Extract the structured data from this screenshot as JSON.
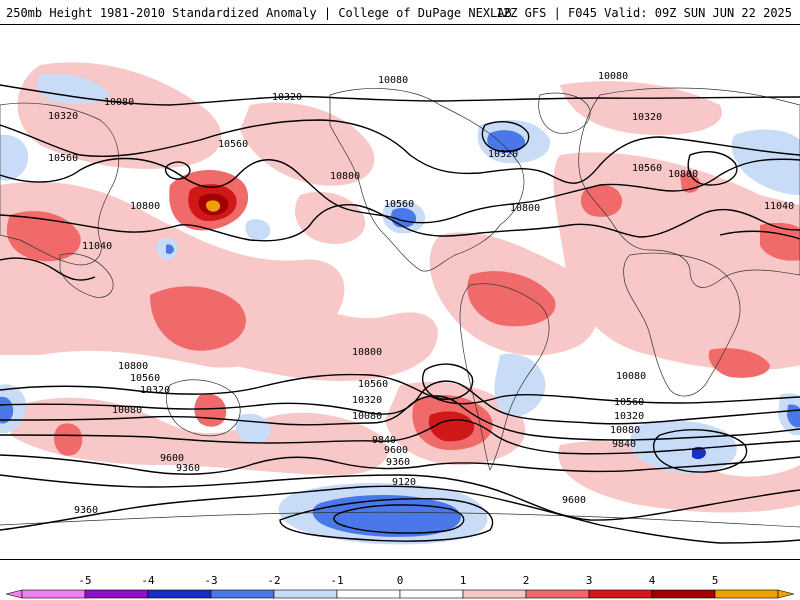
{
  "header": {
    "left": "250mb Height 1981-2010 Standardized Anomaly | College of DuPage NEXLAB",
    "right": "12Z GFS | F045 Valid: 09Z SUN JUN 22 2025"
  },
  "colors": {
    "neg5": "#f080f0",
    "neg4": "#9010c8",
    "neg3": "#1830c0",
    "neg2": "#4a78e8",
    "neg1": "#c8dcf8",
    "zero": "#ffffff",
    "pos1": "#f8c8c8",
    "pos2": "#f06a6a",
    "pos3": "#d01818",
    "pos4": "#a00000",
    "pos5": "#f0a000",
    "contour": "#000000",
    "coast": "#333333"
  },
  "colorbar": {
    "ticks": [
      "-5",
      "-4",
      "-3",
      "-2",
      "-1",
      "0",
      "1",
      "2",
      "3",
      "4",
      "5"
    ]
  },
  "contour_labels": [
    "10080",
    "10080",
    "10080",
    "10320",
    "10320",
    "10320",
    "10560",
    "10560",
    "10800",
    "10560",
    "10320",
    "10560",
    "10800",
    "10800",
    "11040",
    "11040",
    "10800",
    "10800",
    "10560",
    "10560",
    "10320",
    "10320",
    "10080",
    "10080",
    "10080",
    "10800",
    "10560",
    "10320",
    "10080",
    "9840",
    "9840",
    "9600",
    "9600",
    "9360",
    "9120",
    "9600",
    "9360",
    "9360"
  ]
}
